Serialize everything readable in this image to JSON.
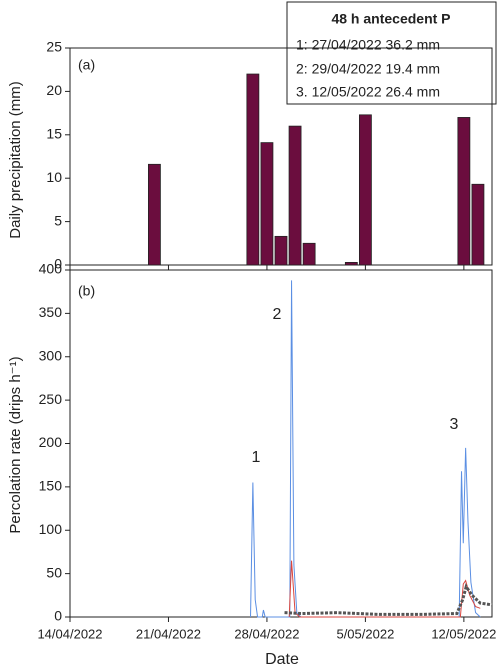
{
  "chart_data": [
    {
      "type": "bar",
      "ylabel": "Daily precipitation (mm)",
      "annotations": [
        "(a)"
      ],
      "legend_box": {
        "title": "48 h antecedent P",
        "lines": [
          "1: 27/04/2022 36.2 mm",
          "2: 29/04/2022 19.4 mm",
          "3. 12/05/2022  26.4 mm"
        ]
      },
      "x": [
        "2022-04-20",
        "2022-04-27",
        "2022-04-28",
        "2022-04-29",
        "2022-04-30",
        "2022-05-01",
        "2022-05-04",
        "2022-05-05",
        "2022-05-12",
        "2022-05-13"
      ],
      "values": [
        11.6,
        22,
        14.1,
        3.3,
        16,
        2.5,
        0.3,
        17.3,
        17,
        9.3
      ],
      "color": "#6b0d3e",
      "xlim": [
        "2022-04-14",
        "2022-05-14"
      ],
      "ylim": [
        0,
        25
      ],
      "yticks": [
        0,
        5,
        10,
        15,
        20,
        25
      ]
    },
    {
      "type": "line",
      "xlabel": "Date",
      "ylabel": "Percolation rate (drips h⁻¹)",
      "annotations": [
        "(b)",
        "1",
        "2",
        "3"
      ],
      "xlim": [
        "2022-04-14",
        "2022-05-14"
      ],
      "xticks": [
        {
          "value": "2022-04-14",
          "label": "14/04/2022"
        },
        {
          "value": "2022-04-21",
          "label": "21/04/2022"
        },
        {
          "value": "2022-04-28",
          "label": "28/04/2022"
        },
        {
          "value": "2022-05-05",
          "label": "5/05/2022"
        },
        {
          "value": "2022-05-12",
          "label": "12/05/2022"
        }
      ],
      "ylim": [
        0,
        400
      ],
      "yticks": [
        0,
        50,
        100,
        150,
        200,
        250,
        300,
        350,
        400
      ],
      "series": [
        {
          "color": "#5b8fe3",
          "width": 1,
          "x": [
            "2022-04-26T20:00",
            "2022-04-27T00:00",
            "2022-04-27T04:00",
            "2022-04-27T08:00",
            "2022-04-27T16:00",
            "2022-04-27T18:00",
            "2022-04-27T21:00",
            "2022-04-29T15:00",
            "2022-04-29T18:00",
            "2022-04-29T22:00",
            "2022-04-30T03:00",
            "2022-04-30T10:00",
            "2022-05-11T16:00",
            "2022-05-11T20:00",
            "2022-05-11T23:00",
            "2022-05-12T03:00",
            "2022-05-12T07:00",
            "2022-05-12T12:00",
            "2022-05-12T20:00",
            "2022-05-13T04:00"
          ],
          "values": [
            0,
            155,
            20,
            0,
            0,
            8,
            0,
            0,
            388,
            60,
            5,
            0,
            0,
            168,
            85,
            195,
            110,
            40,
            5,
            0
          ]
        },
        {
          "color": "#d9463f",
          "width": 1,
          "x": [
            "2022-04-29T14:00",
            "2022-04-29T18:00",
            "2022-04-30T00:00",
            "2022-04-30T08:00",
            "2022-05-11T18:00",
            "2022-05-11T23:00",
            "2022-05-12T03:00",
            "2022-05-12T10:00",
            "2022-05-12T20:00",
            "2022-05-13T04:00"
          ],
          "values": [
            0,
            65,
            5,
            0,
            0,
            38,
            42,
            25,
            12,
            10
          ]
        },
        {
          "color": "#555555",
          "width": 3,
          "dashed": true,
          "x": [
            "2022-04-29T06:00",
            "2022-04-30T12:00",
            "2022-05-03T00:00",
            "2022-05-06T00:00",
            "2022-05-09T00:00",
            "2022-05-11T12:00",
            "2022-05-11T22:00",
            "2022-05-12T04:00",
            "2022-05-12T14:00",
            "2022-05-13T04:00",
            "2022-05-14T00:00"
          ],
          "values": [
            5,
            4,
            5,
            3,
            3,
            4,
            20,
            35,
            25,
            16,
            14
          ]
        }
      ]
    }
  ]
}
